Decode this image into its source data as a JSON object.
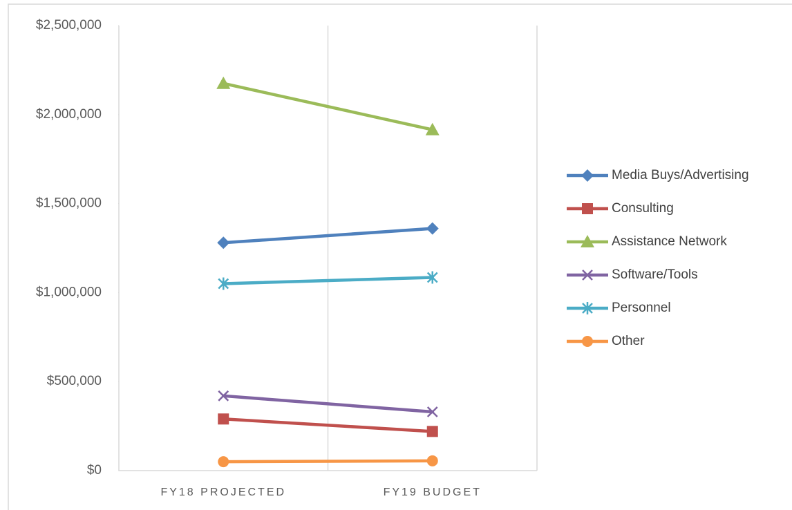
{
  "chart_data": {
    "type": "line",
    "categories": [
      "FY18 PROJECTED",
      "FY19 BUDGET"
    ],
    "series": [
      {
        "name": "Media Buys/Advertising",
        "color": "#4f81bd",
        "marker": "diamond",
        "values": [
          1280000,
          1360000
        ]
      },
      {
        "name": "Consulting",
        "color": "#c0504d",
        "marker": "square",
        "values": [
          290000,
          220000
        ]
      },
      {
        "name": "Assistance Network",
        "color": "#9bbb59",
        "marker": "triangle",
        "values": [
          2175000,
          1915000
        ]
      },
      {
        "name": "Software/Tools",
        "color": "#8064a2",
        "marker": "x",
        "values": [
          420000,
          330000
        ]
      },
      {
        "name": "Personnel",
        "color": "#4bacc6",
        "marker": "asterisk",
        "values": [
          1050000,
          1085000
        ]
      },
      {
        "name": "Other",
        "color": "#f79646",
        "marker": "circle",
        "values": [
          50000,
          55000
        ]
      }
    ],
    "ylim": [
      0,
      2500000
    ],
    "yticks": [
      {
        "value": 0,
        "label": "$0"
      },
      {
        "value": 500000,
        "label": "$500,000"
      },
      {
        "value": 1000000,
        "label": "$1,000,000"
      },
      {
        "value": 1500000,
        "label": "$1,500,000"
      },
      {
        "value": 2000000,
        "label": "$2,000,000"
      },
      {
        "value": 2500000,
        "label": "$2,500,000"
      }
    ],
    "legend": "right"
  }
}
